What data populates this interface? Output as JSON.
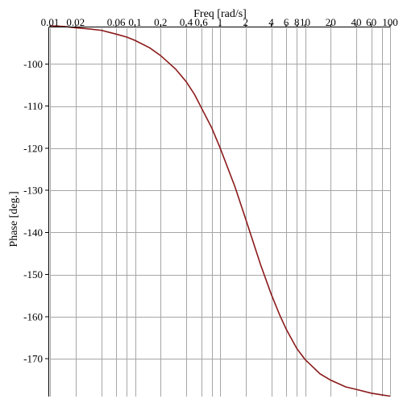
{
  "chart_data": {
    "type": "line",
    "title": "",
    "xlabel": "Freq [rad/s]",
    "ylabel": "Phase [deg.]",
    "x_scale": "log",
    "xlim": [
      0.01,
      100
    ],
    "ylim": [
      -179,
      -91.5
    ],
    "grid": true,
    "x_tick_labels": [
      {
        "value": 0.01,
        "label": "0.01"
      },
      {
        "value": 0.02,
        "label": "0.02"
      },
      {
        "value": 0.06,
        "label": "0.06"
      },
      {
        "value": 0.1,
        "label": "0.1"
      },
      {
        "value": 0.2,
        "label": "0.2"
      },
      {
        "value": 0.4,
        "label": "0.4"
      },
      {
        "value": 0.6,
        "label": "0.6"
      },
      {
        "value": 1,
        "label": "1"
      },
      {
        "value": 2,
        "label": "2"
      },
      {
        "value": 4,
        "label": "4"
      },
      {
        "value": 6,
        "label": "6"
      },
      {
        "value": 8,
        "label": "8"
      },
      {
        "value": 10,
        "label": "10"
      },
      {
        "value": 20,
        "label": "20"
      },
      {
        "value": 40,
        "label": "40"
      },
      {
        "value": 60,
        "label": "60"
      },
      {
        "value": 100,
        "label": "100"
      }
    ],
    "x_grid_values": [
      0.01,
      0.02,
      0.04,
      0.06,
      0.08,
      0.1,
      0.2,
      0.4,
      0.6,
      0.8,
      1,
      2,
      4,
      6,
      8,
      10,
      20,
      40,
      60,
      80,
      100
    ],
    "y_ticks": [
      {
        "value": -100,
        "label": "-100"
      },
      {
        "value": -110,
        "label": "-110"
      },
      {
        "value": -120,
        "label": "-120"
      },
      {
        "value": -130,
        "label": "-130"
      },
      {
        "value": -140,
        "label": "-140"
      },
      {
        "value": -150,
        "label": "-150"
      },
      {
        "value": -160,
        "label": "-160"
      },
      {
        "value": -170,
        "label": "-170"
      }
    ],
    "series": [
      {
        "color": "#8b1a1a",
        "x": [
          0.01,
          0.015,
          0.02,
          0.03,
          0.04,
          0.06,
          0.08,
          0.1,
          0.15,
          0.2,
          0.3,
          0.4,
          0.5,
          0.6,
          0.8,
          1,
          1.5,
          2,
          3,
          4,
          5,
          6,
          8,
          10,
          15,
          20,
          30,
          40,
          60,
          80,
          100
        ],
        "y": [
          -90.9,
          -91.1,
          -91.4,
          -91.7,
          -92.0,
          -92.9,
          -93.6,
          -94.4,
          -96.2,
          -98.0,
          -101.2,
          -104.2,
          -107.2,
          -110.3,
          -115.2,
          -119.9,
          -129.2,
          -136.8,
          -147.7,
          -154.7,
          -159.5,
          -163.0,
          -167.6,
          -170.2,
          -173.6,
          -175.1,
          -176.7,
          -177.3,
          -178.2,
          -178.6,
          -178.9
        ]
      }
    ]
  }
}
